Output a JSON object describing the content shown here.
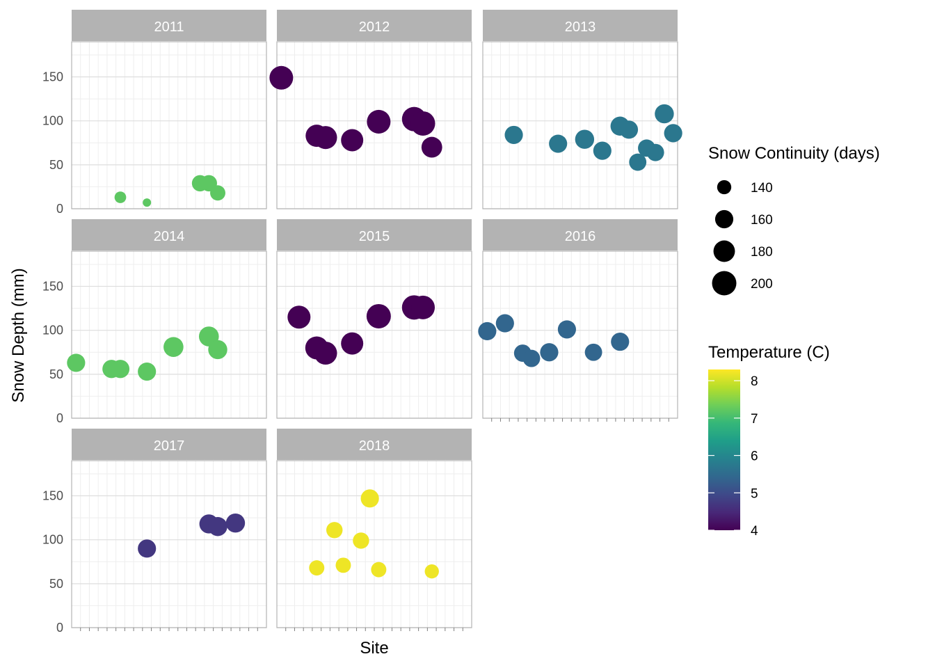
{
  "chart_data": {
    "type": "scatter",
    "xlabel": "Site",
    "ylabel": "Snow Depth (mm)",
    "ylim": [
      0,
      150
    ],
    "y_ticks": [
      0,
      50,
      100,
      150
    ],
    "grid": true,
    "x_site_count": 21,
    "facets": [
      {
        "label": "2011",
        "temperature": 7.2,
        "points": [
          {
            "site": 6,
            "depth": 13,
            "continuity": 130
          },
          {
            "site": 9,
            "depth": 7,
            "continuity": 120
          },
          {
            "site": 15,
            "depth": 29,
            "continuity": 150
          },
          {
            "site": 16,
            "depth": 29,
            "continuity": 150
          },
          {
            "site": 17,
            "depth": 18,
            "continuity": 145
          }
        ]
      },
      {
        "label": "2012",
        "temperature": 4.0,
        "points": [
          {
            "site": 1,
            "depth": 149,
            "continuity": 195
          },
          {
            "site": 5,
            "depth": 83,
            "continuity": 185
          },
          {
            "site": 6,
            "depth": 81,
            "continuity": 190
          },
          {
            "site": 9,
            "depth": 78,
            "continuity": 185
          },
          {
            "site": 12,
            "depth": 99,
            "continuity": 195
          },
          {
            "site": 16,
            "depth": 102,
            "continuity": 200
          },
          {
            "site": 17,
            "depth": 97,
            "continuity": 200
          },
          {
            "site": 18,
            "depth": 70,
            "continuity": 175
          }
        ]
      },
      {
        "label": "2013",
        "temperature": 5.7,
        "points": [
          {
            "site": 4,
            "depth": 84,
            "continuity": 160
          },
          {
            "site": 9,
            "depth": 74,
            "continuity": 160
          },
          {
            "site": 12,
            "depth": 79,
            "continuity": 165
          },
          {
            "site": 14,
            "depth": 66,
            "continuity": 160
          },
          {
            "site": 16,
            "depth": 94,
            "continuity": 165
          },
          {
            "site": 17,
            "depth": 90,
            "continuity": 160
          },
          {
            "site": 18,
            "depth": 53,
            "continuity": 155
          },
          {
            "site": 19,
            "depth": 69,
            "continuity": 155
          },
          {
            "site": 20,
            "depth": 64,
            "continuity": 155
          },
          {
            "site": 21,
            "depth": 108,
            "continuity": 165
          },
          {
            "site": 22,
            "depth": 86,
            "continuity": 160
          }
        ]
      },
      {
        "label": "2014",
        "temperature": 7.2,
        "points": [
          {
            "site": 1,
            "depth": 63,
            "continuity": 160
          },
          {
            "site": 5,
            "depth": 56,
            "continuity": 160
          },
          {
            "site": 6,
            "depth": 56,
            "continuity": 160
          },
          {
            "site": 9,
            "depth": 53,
            "continuity": 160
          },
          {
            "site": 12,
            "depth": 81,
            "continuity": 170
          },
          {
            "site": 16,
            "depth": 93,
            "continuity": 170
          },
          {
            "site": 17,
            "depth": 78,
            "continuity": 165
          }
        ]
      },
      {
        "label": "2015",
        "temperature": 4.0,
        "points": [
          {
            "site": 3,
            "depth": 115,
            "continuity": 190
          },
          {
            "site": 5,
            "depth": 80,
            "continuity": 190
          },
          {
            "site": 6,
            "depth": 74,
            "continuity": 190
          },
          {
            "site": 9,
            "depth": 85,
            "continuity": 185
          },
          {
            "site": 12,
            "depth": 116,
            "continuity": 200
          },
          {
            "site": 16,
            "depth": 126,
            "continuity": 200
          },
          {
            "site": 17,
            "depth": 126,
            "continuity": 195
          }
        ]
      },
      {
        "label": "2016",
        "temperature": 5.4,
        "points": [
          {
            "site": 1,
            "depth": 99,
            "continuity": 160
          },
          {
            "site": 3,
            "depth": 108,
            "continuity": 160
          },
          {
            "site": 5,
            "depth": 74,
            "continuity": 155
          },
          {
            "site": 6,
            "depth": 68,
            "continuity": 155
          },
          {
            "site": 8,
            "depth": 75,
            "continuity": 160
          },
          {
            "site": 10,
            "depth": 101,
            "continuity": 160
          },
          {
            "site": 13,
            "depth": 75,
            "continuity": 155
          },
          {
            "site": 16,
            "depth": 87,
            "continuity": 160
          }
        ]
      },
      {
        "label": "2017",
        "temperature": 4.7,
        "points": [
          {
            "site": 9,
            "depth": 90,
            "continuity": 160
          },
          {
            "site": 16,
            "depth": 118,
            "continuity": 165
          },
          {
            "site": 17,
            "depth": 115,
            "continuity": 165
          },
          {
            "site": 19,
            "depth": 119,
            "continuity": 165
          }
        ]
      },
      {
        "label": "2018",
        "temperature": 8.2,
        "points": [
          {
            "site": 5,
            "depth": 68,
            "continuity": 145
          },
          {
            "site": 7,
            "depth": 111,
            "continuity": 150
          },
          {
            "site": 8,
            "depth": 71,
            "continuity": 145
          },
          {
            "site": 10,
            "depth": 99,
            "continuity": 150
          },
          {
            "site": 11,
            "depth": 147,
            "continuity": 160
          },
          {
            "site": 12,
            "depth": 66,
            "continuity": 145
          },
          {
            "site": 18,
            "depth": 64,
            "continuity": 140
          }
        ]
      }
    ],
    "legend_size": {
      "title": "Snow Continuity (days)",
      "values": [
        140,
        160,
        180,
        200
      ],
      "labels": [
        "140",
        "160",
        "180",
        "200"
      ]
    },
    "legend_color": {
      "title": "Temperature (C)",
      "range": [
        4,
        8.3
      ],
      "ticks": [
        4,
        5,
        6,
        7,
        8
      ],
      "labels": [
        "4",
        "5",
        "6",
        "7",
        "8"
      ],
      "palette": "viridis"
    }
  },
  "colors": {
    "strip_fill": "#b3b3b3",
    "strip_text": "#ffffff",
    "panel_border": "#b3b3b3",
    "grid_major": "#dedede",
    "grid_minor": "#eeeeee",
    "tick_text": "#4d4d4d",
    "viridis_stops": [
      "#440154",
      "#482878",
      "#3e4989",
      "#31688e",
      "#26828e",
      "#1f9e89",
      "#35b779",
      "#6ece58",
      "#b5de2b",
      "#fde725"
    ]
  }
}
